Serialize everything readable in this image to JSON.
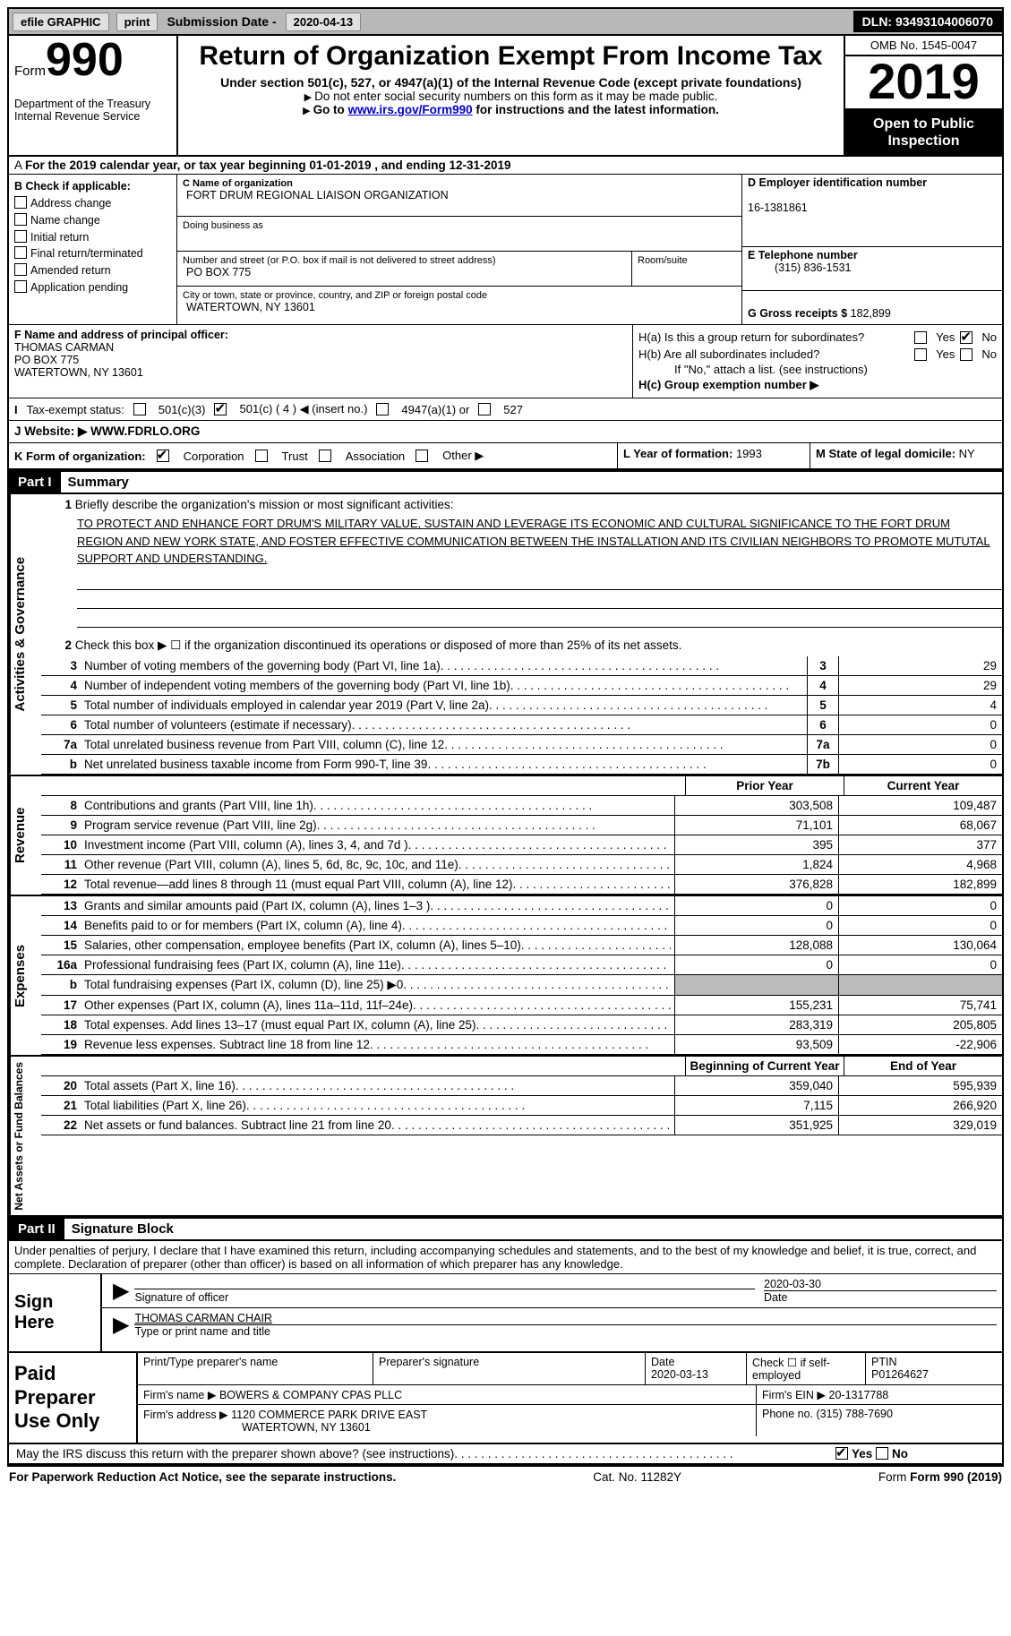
{
  "topbar": {
    "efile": "efile GRAPHIC",
    "print": "print",
    "sub_label": "Submission Date -",
    "sub_date": "2020-04-13",
    "dln": "DLN: 93493104006070"
  },
  "header": {
    "form_word": "Form",
    "form_num": "990",
    "dept1": "Department of the Treasury",
    "dept2": "Internal Revenue Service",
    "title": "Return of Organization Exempt From Income Tax",
    "sub1": "Under section 501(c), 527, or 4947(a)(1) of the Internal Revenue Code (except private foundations)",
    "sub2": "Do not enter social security numbers on this form as it may be made public.",
    "sub3a": "Go to ",
    "sub3_link": "www.irs.gov/Form990",
    "sub3b": " for instructions and the latest information.",
    "omb": "OMB No. 1545-0047",
    "year": "2019",
    "otpi": "Open to Public Inspection"
  },
  "period": "For the 2019 calendar year, or tax year beginning 01-01-2019   , and ending 12-31-2019",
  "secB": {
    "title": "B Check if applicable:",
    "addr": "Address change",
    "name": "Name change",
    "init": "Initial return",
    "final": "Final return/terminated",
    "amend": "Amended return",
    "app": "Application pending"
  },
  "secC": {
    "name_lbl": "C Name of organization",
    "name": "FORT DRUM REGIONAL LIAISON ORGANIZATION",
    "dba_lbl": "Doing business as",
    "dba": "",
    "street_lbl": "Number and street (or P.O. box if mail is not delivered to street address)",
    "street": "PO BOX 775",
    "room_lbl": "Room/suite",
    "city_lbl": "City or town, state or province, country, and ZIP or foreign postal code",
    "city": "WATERTOWN, NY  13601"
  },
  "secD": {
    "lbl": "D Employer identification number",
    "val": "16-1381861"
  },
  "secE": {
    "lbl": "E Telephone number",
    "val": "(315) 836-1531"
  },
  "secG": {
    "lbl": "G Gross receipts $",
    "val": "182,899"
  },
  "secF": {
    "lbl": "F  Name and address of principal officer:",
    "l1": "THOMAS CARMAN",
    "l2": "PO BOX 775",
    "l3": "WATERTOWN, NY  13601"
  },
  "secH": {
    "ha": "H(a)  Is this a group return for subordinates?",
    "hb": "H(b)  Are all subordinates included?",
    "hb_note": "If \"No,\" attach a list. (see instructions)",
    "hc": "H(c)  Group exemption number ▶",
    "yes": "Yes",
    "no": "No"
  },
  "secI": {
    "lbl": "Tax-exempt status:",
    "o1": "501(c)(3)",
    "o2": "501(c) ( 4 ) ◀ (insert no.)",
    "o3": "4947(a)(1) or",
    "o4": "527"
  },
  "secJ": {
    "lbl": "J   Website: ▶",
    "val": "WWW.FDRLO.ORG"
  },
  "secK": {
    "lbl": "K Form of organization:",
    "o1": "Corporation",
    "o2": "Trust",
    "o3": "Association",
    "o4": "Other ▶"
  },
  "secL": {
    "lbl": "L Year of formation:",
    "val": "1993"
  },
  "secM": {
    "lbl": "M State of legal domicile:",
    "val": "NY"
  },
  "part1": {
    "num": "Part I",
    "title": "Summary"
  },
  "vtabs": {
    "gov": "Activities & Governance",
    "rev": "Revenue",
    "exp": "Expenses",
    "net": "Net Assets or Fund Balances"
  },
  "q1": {
    "num": "1",
    "txt": "Briefly describe the organization's mission or most significant activities:",
    "mission": "TO PROTECT AND ENHANCE FORT DRUM'S MILITARY VALUE, SUSTAIN AND LEVERAGE ITS ECONOMIC AND CULTURAL SIGNIFICANCE TO THE FORT DRUM REGION AND NEW YORK STATE, AND FOSTER EFFECTIVE COMMUNICATION BETWEEN THE INSTALLATION AND ITS CIVILIAN NEIGHBORS TO PROMOTE MUTUTAL SUPPORT AND UNDERSTANDING."
  },
  "q2": {
    "num": "2",
    "txt": "Check this box ▶ ☐  if the organization discontinued its operations or disposed of more than 25% of its net assets."
  },
  "lines_gov": [
    {
      "num": "3",
      "txt": "Number of voting members of the governing body (Part VI, line 1a)",
      "box": "3",
      "val": "29"
    },
    {
      "num": "4",
      "txt": "Number of independent voting members of the governing body (Part VI, line 1b)",
      "box": "4",
      "val": "29"
    },
    {
      "num": "5",
      "txt": "Total number of individuals employed in calendar year 2019 (Part V, line 2a)",
      "box": "5",
      "val": "4"
    },
    {
      "num": "6",
      "txt": "Total number of volunteers (estimate if necessary)",
      "box": "6",
      "val": "0"
    },
    {
      "num": "7a",
      "txt": "Total unrelated business revenue from Part VIII, column (C), line 12",
      "box": "7a",
      "val": "0"
    },
    {
      "num": "b",
      "txt": "Net unrelated business taxable income from Form 990-T, line 39",
      "box": "7b",
      "val": "0"
    }
  ],
  "cols": {
    "prior": "Prior Year",
    "current": "Current Year"
  },
  "lines_rev": [
    {
      "num": "8",
      "txt": "Contributions and grants (Part VIII, line 1h)",
      "p": "303,508",
      "c": "109,487"
    },
    {
      "num": "9",
      "txt": "Program service revenue (Part VIII, line 2g)",
      "p": "71,101",
      "c": "68,067"
    },
    {
      "num": "10",
      "txt": "Investment income (Part VIII, column (A), lines 3, 4, and 7d )",
      "p": "395",
      "c": "377"
    },
    {
      "num": "11",
      "txt": "Other revenue (Part VIII, column (A), lines 5, 6d, 8c, 9c, 10c, and 11e)",
      "p": "1,824",
      "c": "4,968"
    },
    {
      "num": "12",
      "txt": "Total revenue—add lines 8 through 11 (must equal Part VIII, column (A), line 12)",
      "p": "376,828",
      "c": "182,899"
    }
  ],
  "lines_exp": [
    {
      "num": "13",
      "txt": "Grants and similar amounts paid (Part IX, column (A), lines 1–3 )",
      "p": "0",
      "c": "0"
    },
    {
      "num": "14",
      "txt": "Benefits paid to or for members (Part IX, column (A), line 4)",
      "p": "0",
      "c": "0"
    },
    {
      "num": "15",
      "txt": "Salaries, other compensation, employee benefits (Part IX, column (A), lines 5–10)",
      "p": "128,088",
      "c": "130,064"
    },
    {
      "num": "16a",
      "txt": "Professional fundraising fees (Part IX, column (A), line 11e)",
      "p": "0",
      "c": "0"
    },
    {
      "num": "b",
      "txt": "Total fundraising expenses (Part IX, column (D), line 25) ▶0",
      "p": "",
      "c": "",
      "shade": true
    },
    {
      "num": "17",
      "txt": "Other expenses (Part IX, column (A), lines 11a–11d, 11f–24e)",
      "p": "155,231",
      "c": "75,741"
    },
    {
      "num": "18",
      "txt": "Total expenses. Add lines 13–17 (must equal Part IX, column (A), line 25)",
      "p": "283,319",
      "c": "205,805"
    },
    {
      "num": "19",
      "txt": "Revenue less expenses. Subtract line 18 from line 12",
      "p": "93,509",
      "c": "-22,906"
    }
  ],
  "cols2": {
    "beg": "Beginning of Current Year",
    "end": "End of Year"
  },
  "lines_net": [
    {
      "num": "20",
      "txt": "Total assets (Part X, line 16)",
      "p": "359,040",
      "c": "595,939"
    },
    {
      "num": "21",
      "txt": "Total liabilities (Part X, line 26)",
      "p": "7,115",
      "c": "266,920"
    },
    {
      "num": "22",
      "txt": "Net assets or fund balances. Subtract line 21 from line 20",
      "p": "351,925",
      "c": "329,019"
    }
  ],
  "part2": {
    "num": "Part II",
    "title": "Signature Block"
  },
  "perjury": "Under penalties of perjury, I declare that I have examined this return, including accompanying schedules and statements, and to the best of my knowledge and belief, it is true, correct, and complete. Declaration of preparer (other than officer) is based on all information of which preparer has any knowledge.",
  "sign": {
    "here": "Sign Here",
    "sig_lbl": "Signature of officer",
    "date_lbl": "Date",
    "date": "2020-03-30",
    "name": "THOMAS CARMAN  CHAIR",
    "name_lbl": "Type or print name and title"
  },
  "paid": {
    "title": "Paid Preparer Use Only",
    "h1": "Print/Type preparer's name",
    "h2": "Preparer's signature",
    "h3": "Date",
    "h3v": "2020-03-13",
    "h4": "Check ☐ if self-employed",
    "h5": "PTIN",
    "h5v": "P01264627",
    "firm_lbl": "Firm's name    ▶",
    "firm": "BOWERS & COMPANY CPAS PLLC",
    "ein_lbl": "Firm's EIN ▶",
    "ein": "20-1317788",
    "addr_lbl": "Firm's address ▶",
    "addr1": "1120 COMMERCE PARK DRIVE EAST",
    "addr2": "WATERTOWN, NY  13601",
    "phone_lbl": "Phone no.",
    "phone": "(315) 788-7690"
  },
  "discuss": {
    "txt": "May the IRS discuss this return with the preparer shown above? (see instructions)",
    "yes": "Yes",
    "no": "No"
  },
  "footer": {
    "l": "For Paperwork Reduction Act Notice, see the separate instructions.",
    "m": "Cat. No. 11282Y",
    "r": "Form 990 (2019)"
  }
}
